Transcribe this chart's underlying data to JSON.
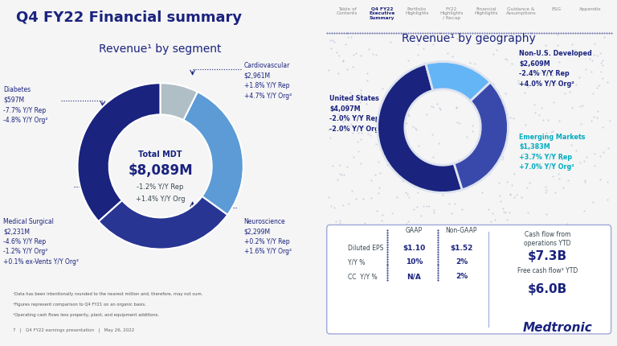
{
  "title_main": "Q4 FY22 Financial summary",
  "nav_items": [
    "Table of\nContents",
    "Q4 FY22\nExecutive\nSummary",
    "Portfolio\nHighlights",
    "FY22\nHighlights\n/ Recap",
    "Financial\nHighlights",
    "Guidance &\nAssumptions",
    "ESG",
    "Appendix"
  ],
  "nav_active": 1,
  "seg_title": "Revenue¹ by segment",
  "seg_total_label": "Total MDT",
  "seg_total_value": "$8,089M",
  "seg_total_sub1": "-1.2% Y/Y Rep",
  "seg_total_sub2": "+1.4% Y/Y Org",
  "seg_segments": [
    {
      "name": "Cardiovascular",
      "value": 2961,
      "color": "#1a237e",
      "label": "Cardiovascular\n$2,961M\n+1.8% Y/Y Rep\n+4.7% Y/Y Org²"
    },
    {
      "name": "Neuroscience",
      "value": 2299,
      "color": "#283593",
      "label": "Neuroscience\n$2,299M\n+0.2% Y/Y Rep\n+1.6% Y/Y Org²"
    },
    {
      "name": "Medical Surgical",
      "value": 2231,
      "color": "#5c9bd6",
      "label": "Medical Surgical\n$2,231M\n-4.6% Y/Y Rep\n-1.2% Y/Y Org²\n+0.1% ex-Vents Y/Y Org²"
    },
    {
      "name": "Diabetes",
      "value": 597,
      "color": "#b0bec5",
      "label": "Diabetes\n$597M\n-7.7% Y/Y Rep\n-4.8% Y/Y Org²"
    }
  ],
  "geo_title": "Revenue¹ by geography",
  "geo_segments": [
    {
      "name": "United States",
      "value": 4097,
      "color": "#1a237e",
      "label": "United States\n$4,097M\n-2.0% Y/Y Rep\n-2.0% Y/Y Org²",
      "label_color": "#1a237e"
    },
    {
      "name": "Non-U.S. Developed",
      "value": 2609,
      "color": "#3949ab",
      "label": "Non-U.S. Developed\n$2,609M\n-2.4% Y/Y Rep\n+4.0% Y/Y Org²",
      "label_color": "#1a237e"
    },
    {
      "name": "Emerging Markets",
      "value": 1383,
      "color": "#64b5f6",
      "label": "Emerging Markets\n$1,383M\n+3.7% Y/Y Rep\n+7.0% Y/Y Org²",
      "label_color": "#00acc1"
    }
  ],
  "table_rows": [
    [
      "Diluted EPS",
      "$1.10",
      "$1.52"
    ],
    [
      "Y/Y %",
      "10%",
      "2%"
    ],
    [
      "CC  Y/Y %",
      "N/A",
      "2%"
    ]
  ],
  "cashflow1_label": "Cash flow from\noperations YTD",
  "cashflow1_value": "$7.3B",
  "cashflow2_label": "Free cash flow³ YTD",
  "cashflow2_value": "$6.0B",
  "footnotes": [
    "¹Data has been intentionally rounded to the nearest million and, therefore, may not sum.",
    "²Figures represent comparison to Q4 FY21 on an organic basis.",
    "³Operating cash flows less property, plant, and equipment additions."
  ],
  "footer_text": "7   |   Q4 FY22 earnings presentation   |   May 26, 2022",
  "dark_blue": "#1a237e",
  "medium_blue": "#3949ab",
  "light_blue": "#64b5f6",
  "gray_light": "#b0bec5",
  "text_medium": "#37474f",
  "bg_left": "#f5f5f5",
  "bg_right": "#dde3ef"
}
